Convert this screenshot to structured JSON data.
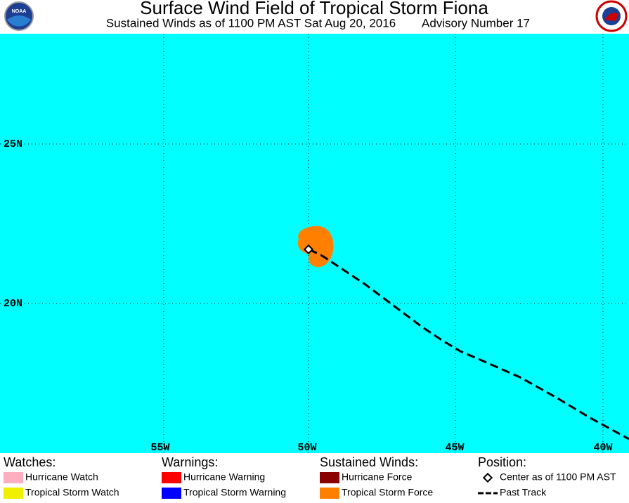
{
  "header": {
    "title": "Surface Wind Field of Tropical Storm Fiona",
    "subtitle": "Sustained Winds as of 1100 PM AST Sat Aug 20, 2016",
    "advisory": "Advisory Number 17",
    "logo_text": "NOAA"
  },
  "map": {
    "latitude_labels": [
      "25N",
      "20N"
    ],
    "longitude_labels": [
      "55W",
      "50W",
      "45W",
      "40W"
    ]
  },
  "legend": [
    {
      "heading": "Watches:",
      "items": [
        {
          "label": "Hurricane Watch",
          "color": "#ffaec0"
        },
        {
          "label": "Tropical Storm Watch",
          "color": "#f0f000"
        }
      ]
    },
    {
      "heading": "Warnings:",
      "items": [
        {
          "label": "Hurricane Warning",
          "color": "#ff0000"
        },
        {
          "label": "Tropical Storm Warning",
          "color": "#0000ff"
        }
      ]
    },
    {
      "heading": "Sustained Winds:",
      "items": [
        {
          "label": "Hurricane Force",
          "color": "#8b0000"
        },
        {
          "label": "Tropical Storm Force",
          "color": "#ff8000"
        }
      ]
    },
    {
      "heading": "Position:",
      "items": [
        {
          "label": "Center as of 1100 PM AST"
        },
        {
          "label": "Past Track"
        }
      ]
    }
  ]
}
